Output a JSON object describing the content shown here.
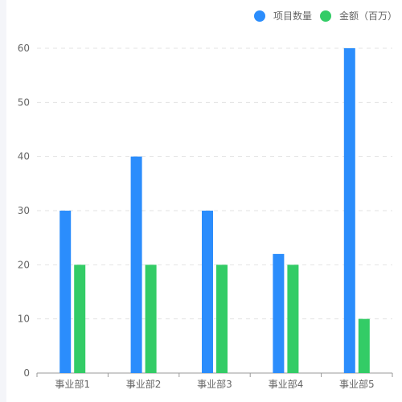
{
  "chart_data": {
    "type": "bar",
    "categories": [
      "事业部1",
      "事业部2",
      "事业部3",
      "事业部4",
      "事业部5"
    ],
    "series": [
      {
        "name": "项目数量",
        "values": [
          30,
          40,
          30,
          22,
          60
        ],
        "color": "#2b8dfc"
      },
      {
        "name": "金额（百万）",
        "values": [
          20,
          20,
          20,
          20,
          10
        ],
        "color": "#33cc66"
      }
    ],
    "ylim": [
      0,
      60
    ],
    "yticks": [
      "0",
      "10",
      "20",
      "30",
      "40",
      "50",
      "60"
    ],
    "grid": true,
    "legend_position": "top-right"
  }
}
